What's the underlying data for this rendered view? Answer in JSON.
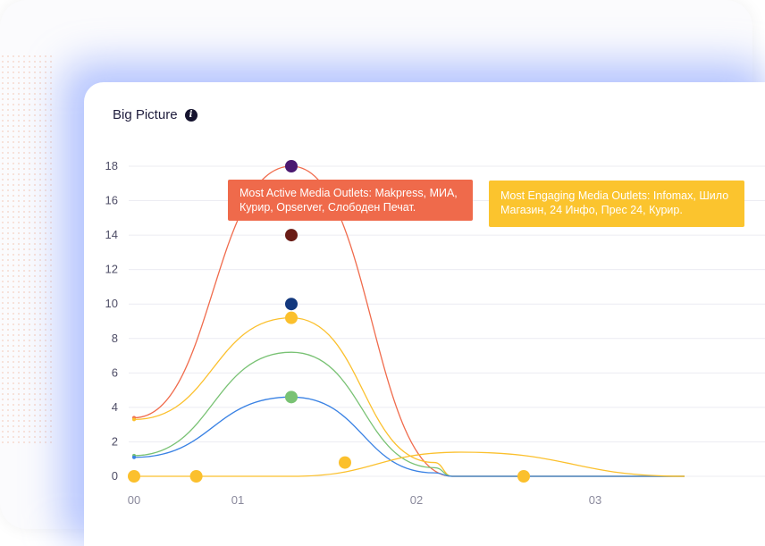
{
  "header": {
    "title": "Big Picture",
    "info_icon": "info-icon"
  },
  "tooltips": {
    "active": "Most Active Media Outlets: Makpress, МИА, Курир, Opserver, Слободен Печат.",
    "engaging": "Most Engaging Media Outlets: Infomax, Шило Магазин, 24 Инфо, Прес 24, Курир."
  },
  "chart_data": {
    "type": "line",
    "title": "Big Picture",
    "x_ticks": [
      "00",
      "01",
      "02",
      "03"
    ],
    "y_ticks": [
      "0",
      "2",
      "4",
      "6",
      "8",
      "10",
      "12",
      "14",
      "16",
      "18"
    ],
    "ylim": [
      0,
      18
    ],
    "grid": true,
    "series": [
      {
        "color": "#f06b4c",
        "points": [
          [
            0,
            3.4
          ],
          [
            1.3,
            18
          ],
          [
            2.2,
            0
          ],
          [
            3.5,
            0
          ]
        ]
      },
      {
        "color": "#fbc02d",
        "points": [
          [
            0,
            3.3
          ],
          [
            1.3,
            9.2
          ],
          [
            2.1,
            0.8
          ],
          [
            2.2,
            0
          ],
          [
            3.5,
            0
          ]
        ]
      },
      {
        "color": "#79c274",
        "points": [
          [
            0,
            1.2
          ],
          [
            1.3,
            7.2
          ],
          [
            2.1,
            0.5
          ],
          [
            2.2,
            0
          ],
          [
            3.5,
            0
          ]
        ]
      },
      {
        "color": "#3a82e4",
        "points": [
          [
            0,
            1.1
          ],
          [
            1.3,
            4.6
          ],
          [
            2.1,
            0.2
          ],
          [
            2.2,
            0
          ],
          [
            3.5,
            0
          ]
        ]
      },
      {
        "color": "#fbc02d",
        "points": [
          [
            0,
            0
          ],
          [
            1.3,
            0
          ],
          [
            2.25,
            1.4
          ],
          [
            3.5,
            0
          ]
        ]
      }
    ],
    "markers": [
      {
        "x": 1.3,
        "y": 18,
        "color": "#4b1870"
      },
      {
        "x": 1.3,
        "y": 14,
        "color": "#6a1c16"
      },
      {
        "x": 1.3,
        "y": 10,
        "color": "#13387e"
      },
      {
        "x": 1.3,
        "y": 9.2,
        "color": "#fbc02d"
      },
      {
        "x": 1.3,
        "y": 4.6,
        "color": "#79c274"
      },
      {
        "x": 0,
        "y": 0,
        "color": "#fbc02d"
      },
      {
        "x": 0.6,
        "y": 0,
        "color": "#fbc02d"
      },
      {
        "x": 1.6,
        "y": 0.8,
        "color": "#fbc02d"
      },
      {
        "x": 2.6,
        "y": 0,
        "color": "#fbc02d"
      }
    ]
  }
}
